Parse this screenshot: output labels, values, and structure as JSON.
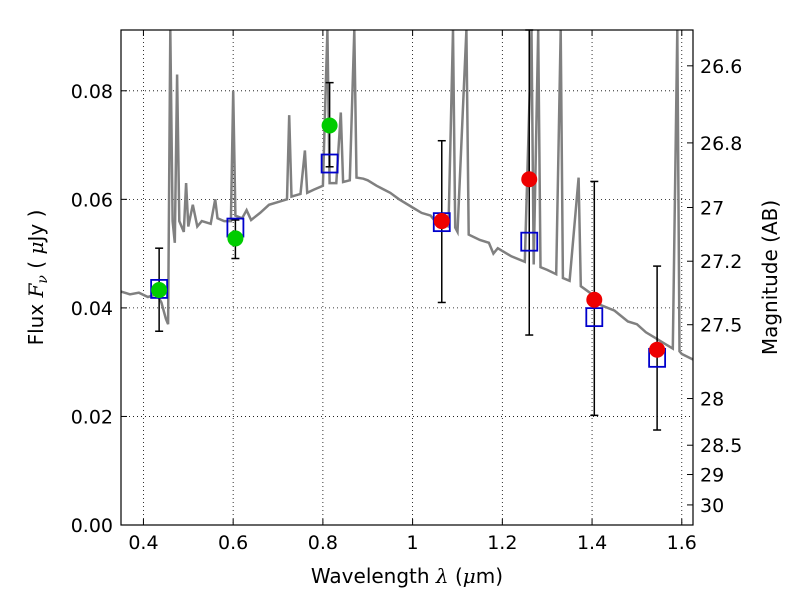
{
  "chart_data": {
    "type": "scatter",
    "xlabel": {
      "prefix": "Wavelength  ",
      "symbol": "λ",
      "unit_open": " (",
      "unit_mu": "μ",
      "unit_rest": "m)"
    },
    "ylabel": {
      "prefix": "Flux  ",
      "symbol": "F",
      "subscript": "ν",
      "unit_open": "  ( ",
      "unit_mu": "μ",
      "unit_rest": "Jy )"
    },
    "y2label": "Magnitude (AB)",
    "xlim": [
      0.35,
      1.625
    ],
    "ylim": [
      0.0,
      0.0912
    ],
    "grid": true,
    "xticks": [
      {
        "value": 0.4,
        "label": "0.4"
      },
      {
        "value": 0.6,
        "label": "0.6"
      },
      {
        "value": 0.8,
        "label": "0.8"
      },
      {
        "value": 1.0,
        "label": "1"
      },
      {
        "value": 1.2,
        "label": "1.2"
      },
      {
        "value": 1.4,
        "label": "1.4"
      },
      {
        "value": 1.6,
        "label": "1.6"
      }
    ],
    "yticks": [
      {
        "value": 0.0,
        "label": "0.00"
      },
      {
        "value": 0.02,
        "label": "0.02"
      },
      {
        "value": 0.04,
        "label": "0.04"
      },
      {
        "value": 0.06,
        "label": "0.06"
      },
      {
        "value": 0.08,
        "label": "0.08"
      }
    ],
    "y2ticks": [
      {
        "label": "26.6",
        "flux": 0.0846
      },
      {
        "label": "26.8",
        "flux": 0.0704
      },
      {
        "label": "27",
        "flux": 0.0585
      },
      {
        "label": "27.2",
        "flux": 0.0486
      },
      {
        "label": "27.5",
        "flux": 0.0369
      },
      {
        "label": "28",
        "flux": 0.0233
      },
      {
        "label": "28.5",
        "flux": 0.0147
      },
      {
        "label": "29",
        "flux": 0.0093
      },
      {
        "label": "30",
        "flux": 0.0037
      }
    ],
    "series": [
      {
        "marker": "open-square",
        "color": "#0000cc",
        "points": [
          {
            "x": 0.435,
            "y": 0.0435
          },
          {
            "x": 0.605,
            "y": 0.0548
          },
          {
            "x": 0.815,
            "y": 0.0666
          },
          {
            "x": 1.065,
            "y": 0.0558
          },
          {
            "x": 1.26,
            "y": 0.0522
          },
          {
            "x": 1.405,
            "y": 0.0383
          },
          {
            "x": 1.545,
            "y": 0.0308
          }
        ]
      },
      {
        "marker": "filled-circle",
        "color": "#00cc00",
        "points": [
          {
            "x": 0.435,
            "y": 0.0433,
            "yerr": [
              0.0357,
              0.051
            ]
          },
          {
            "x": 0.605,
            "y": 0.0528,
            "yerr": [
              0.0491,
              0.0562
            ]
          },
          {
            "x": 0.815,
            "y": 0.0736,
            "yerr": [
              0.066,
              0.0815
            ]
          }
        ]
      },
      {
        "marker": "filled-circle",
        "color": "#ee0000",
        "points": [
          {
            "x": 1.065,
            "y": 0.056,
            "yerr": [
              0.041,
              0.0708
            ]
          },
          {
            "x": 1.26,
            "y": 0.0637,
            "yerr": [
              0.035,
              0.0912
            ]
          },
          {
            "x": 1.405,
            "y": 0.0415,
            "yerr": [
              0.0202,
              0.0633
            ]
          },
          {
            "x": 1.545,
            "y": 0.0323,
            "yerr": [
              0.0175,
              0.0477
            ]
          }
        ]
      }
    ],
    "model_spectrum": {
      "color": "#808080",
      "points": [
        [
          0.35,
          0.043
        ],
        [
          0.37,
          0.0425
        ],
        [
          0.39,
          0.0428
        ],
        [
          0.41,
          0.042
        ],
        [
          0.43,
          0.0425
        ],
        [
          0.44,
          0.041
        ],
        [
          0.45,
          0.038
        ],
        [
          0.455,
          0.037
        ],
        [
          0.46,
          0.0912
        ],
        [
          0.465,
          0.056
        ],
        [
          0.47,
          0.052
        ],
        [
          0.475,
          0.083
        ],
        [
          0.48,
          0.056
        ],
        [
          0.49,
          0.054
        ],
        [
          0.495,
          0.063
        ],
        [
          0.5,
          0.055
        ],
        [
          0.51,
          0.059
        ],
        [
          0.52,
          0.055
        ],
        [
          0.53,
          0.056
        ],
        [
          0.55,
          0.0555
        ],
        [
          0.56,
          0.06
        ],
        [
          0.565,
          0.0565
        ],
        [
          0.58,
          0.056
        ],
        [
          0.595,
          0.056
        ],
        [
          0.6,
          0.08
        ],
        [
          0.605,
          0.057
        ],
        [
          0.62,
          0.0565
        ],
        [
          0.63,
          0.058
        ],
        [
          0.64,
          0.0562
        ],
        [
          0.66,
          0.0575
        ],
        [
          0.68,
          0.059
        ],
        [
          0.7,
          0.0595
        ],
        [
          0.72,
          0.06
        ],
        [
          0.725,
          0.0755
        ],
        [
          0.73,
          0.0605
        ],
        [
          0.75,
          0.061
        ],
        [
          0.76,
          0.069
        ],
        [
          0.765,
          0.0612
        ],
        [
          0.78,
          0.0618
        ],
        [
          0.8,
          0.0625
        ],
        [
          0.81,
          0.0912
        ],
        [
          0.815,
          0.063
        ],
        [
          0.83,
          0.063
        ],
        [
          0.84,
          0.076
        ],
        [
          0.845,
          0.0632
        ],
        [
          0.86,
          0.0635
        ],
        [
          0.87,
          0.0912
        ],
        [
          0.875,
          0.064
        ],
        [
          0.89,
          0.0638
        ],
        [
          0.9,
          0.0635
        ],
        [
          0.92,
          0.0625
        ],
        [
          0.95,
          0.0612
        ],
        [
          0.97,
          0.06
        ],
        [
          1.0,
          0.0585
        ],
        [
          1.02,
          0.0575
        ],
        [
          1.04,
          0.057
        ],
        [
          1.05,
          0.056
        ],
        [
          1.06,
          0.0555
        ],
        [
          1.08,
          0.055
        ],
        [
          1.09,
          0.0912
        ],
        [
          1.095,
          0.0548
        ],
        [
          1.1,
          0.054
        ],
        [
          1.12,
          0.0912
        ],
        [
          1.125,
          0.0535
        ],
        [
          1.15,
          0.0525
        ],
        [
          1.17,
          0.052
        ],
        [
          1.18,
          0.05
        ],
        [
          1.19,
          0.051
        ],
        [
          1.2,
          0.0505
        ],
        [
          1.22,
          0.0495
        ],
        [
          1.25,
          0.0485
        ],
        [
          1.265,
          0.0912
        ],
        [
          1.27,
          0.048
        ],
        [
          1.28,
          0.0912
        ],
        [
          1.285,
          0.0475
        ],
        [
          1.3,
          0.047
        ],
        [
          1.32,
          0.0462
        ],
        [
          1.33,
          0.0912
        ],
        [
          1.335,
          0.0455
        ],
        [
          1.35,
          0.045
        ],
        [
          1.37,
          0.064
        ],
        [
          1.375,
          0.044
        ],
        [
          1.4,
          0.0425
        ],
        [
          1.42,
          0.0405
        ],
        [
          1.45,
          0.0395
        ],
        [
          1.48,
          0.0375
        ],
        [
          1.5,
          0.037
        ],
        [
          1.52,
          0.0355
        ],
        [
          1.54,
          0.0345
        ],
        [
          1.56,
          0.0335
        ],
        [
          1.58,
          0.0325
        ],
        [
          1.59,
          0.0912
        ],
        [
          1.595,
          0.032
        ],
        [
          1.6,
          0.0315
        ],
        [
          1.625,
          0.0305
        ]
      ]
    }
  }
}
